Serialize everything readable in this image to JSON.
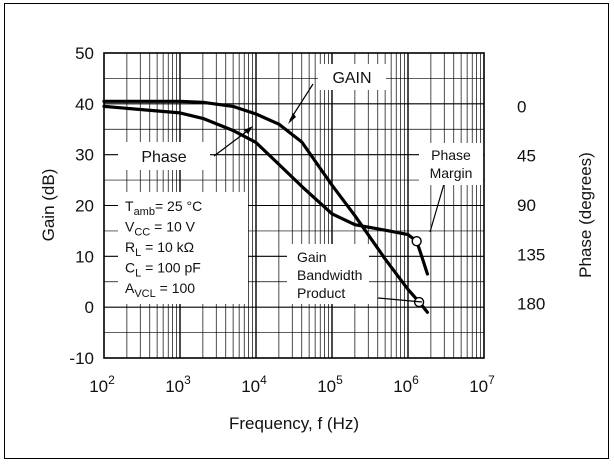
{
  "chart_data": {
    "type": "line",
    "xlabel": "Frequency, f (Hz)",
    "ylabel_left": "Gain (dB)",
    "ylabel_right": "Phase (degrees)",
    "x_scale": "log",
    "xlim": [
      100,
      10000000
    ],
    "x_ticks": [
      {
        "base": "10",
        "exp": "2"
      },
      {
        "base": "10",
        "exp": "3"
      },
      {
        "base": "10",
        "exp": "4"
      },
      {
        "base": "10",
        "exp": "5"
      },
      {
        "base": "10",
        "exp": "6"
      },
      {
        "base": "10",
        "exp": "7"
      }
    ],
    "ylim_left": [
      -10,
      50
    ],
    "y_ticks_left": [
      "-10",
      "0",
      "10",
      "20",
      "30",
      "40",
      "50"
    ],
    "y_ticks_right": [
      "0",
      "45",
      "90",
      "135",
      "180"
    ],
    "grid": true,
    "series": [
      {
        "name": "GAIN",
        "axis": "left",
        "x": [
          100,
          1000,
          2000,
          5000,
          10000,
          20000,
          40000,
          100000,
          200000,
          500000,
          1000000,
          1500000,
          1800000
        ],
        "y": [
          40.5,
          40.5,
          40.3,
          39.5,
          38,
          36,
          32.5,
          24,
          18,
          9.5,
          3.5,
          0.5,
          -1
        ]
      },
      {
        "name": "Phase",
        "axis": "right",
        "x": [
          100,
          1000,
          2000,
          5000,
          10000,
          20000,
          40000,
          100000,
          200000,
          500000,
          1000000,
          1300000,
          1500000,
          1800000
        ],
        "y": [
          0,
          6,
          11,
          22,
          33,
          53,
          73,
          98,
          108,
          113,
          117,
          123,
          136,
          153
        ]
      }
    ],
    "labels": {
      "gain": "GAIN",
      "phase": "Phase",
      "phase_margin_1": "Phase",
      "phase_margin_2": "Margin",
      "gbp_1": "Gain",
      "gbp_2": "Bandwidth",
      "gbp_3": "Product"
    },
    "conditions": [
      {
        "main": "T",
        "sub": "amb",
        "rest": "= 25 °C"
      },
      {
        "main": "V",
        "sub": "CC",
        "rest": " = 10 V"
      },
      {
        "main": "R",
        "sub": "L",
        "rest": " = 10 kΩ"
      },
      {
        "main": "C",
        "sub": "L",
        "rest": " = 100 pF"
      },
      {
        "main": "A",
        "sub": "VCL",
        "rest": " = 100"
      }
    ],
    "markers": [
      {
        "name": "phase-margin-point",
        "axis": "right",
        "x": 1300000,
        "y": 123
      },
      {
        "name": "gain-bandwidth-point",
        "axis": "left",
        "x": 1400000,
        "y": 1
      }
    ]
  }
}
